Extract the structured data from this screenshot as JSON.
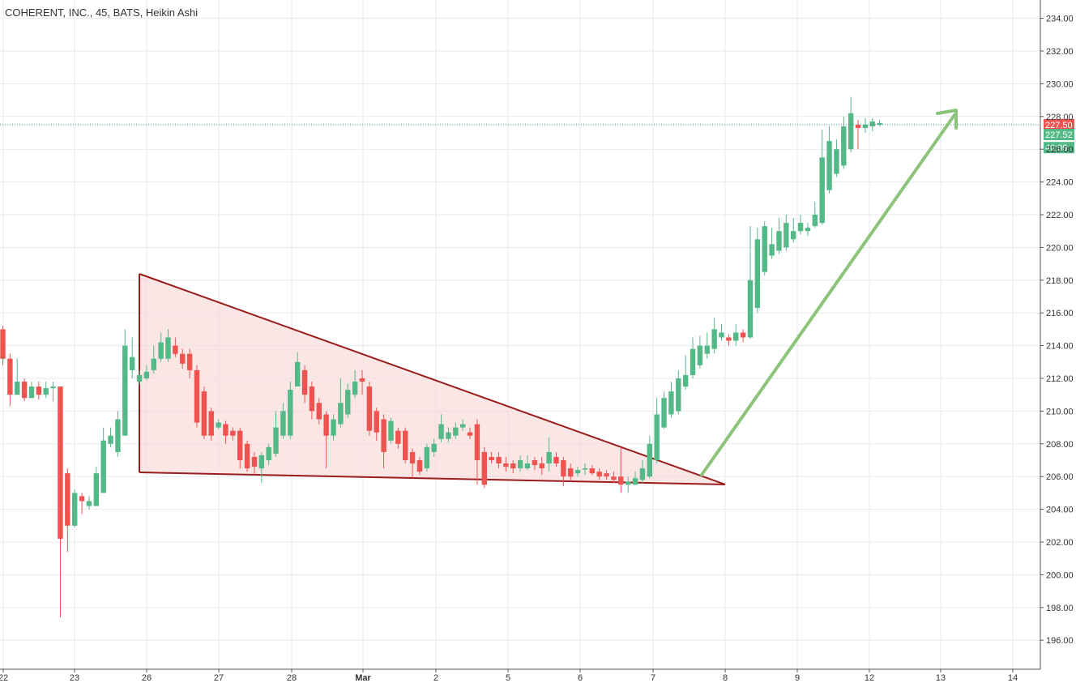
{
  "header": {
    "title": "COHERENT, INC., 45, BATS, Heikin Ashi"
  },
  "chart_data": {
    "type": "candlestick",
    "ylim": [
      194.5,
      235
    ],
    "y_ticks": [
      196,
      198,
      200,
      202,
      204,
      206,
      208,
      210,
      212,
      214,
      216,
      218,
      220,
      222,
      224,
      226,
      228,
      230,
      232,
      234
    ],
    "x_labels": [
      "22",
      "23",
      "26",
      "27",
      "28",
      "Mar",
      "2",
      "5",
      "6",
      "7",
      "8",
      "9",
      "12",
      "13",
      "14"
    ],
    "price_labels": [
      {
        "value": "227.50",
        "price": 227.5,
        "color": "#ef5350"
      },
      {
        "value": "227.52",
        "price": 226.9,
        "color": "#53b987"
      },
      {
        "value": "40:09",
        "price": 226.1,
        "color": "#53b987"
      }
    ],
    "last_price": 227.5,
    "colors": {
      "up": "#53b987",
      "down": "#ef5350",
      "grid": "#e6e9ef",
      "pattern_stroke": "#9b1c1c",
      "pattern_fill": "#f9d6d6",
      "arrow": "#8cc47a"
    },
    "candles": [
      [
        215.0,
        213.2,
        215.2,
        212.8
      ],
      [
        213.2,
        211.0,
        213.5,
        210.3
      ],
      [
        211.0,
        211.8,
        213.2,
        211.0
      ],
      [
        211.8,
        210.8,
        212.0,
        210.6
      ],
      [
        210.8,
        211.5,
        211.8,
        210.9
      ],
      [
        211.5,
        211.0,
        211.8,
        210.7
      ],
      [
        211.0,
        211.4,
        211.8,
        210.8
      ],
      [
        211.4,
        211.5,
        211.8,
        210.6
      ],
      [
        211.5,
        202.2,
        211.5,
        197.4
      ],
      [
        206.2,
        203.0,
        206.5,
        201.4
      ],
      [
        203.0,
        205.0,
        205.2,
        202.9
      ],
      [
        204.8,
        204.5,
        205.0,
        203.7
      ],
      [
        204.2,
        204.5,
        204.8,
        204.0
      ],
      [
        204.2,
        206.2,
        206.6,
        204.2
      ],
      [
        205.0,
        208.2,
        209.0,
        205.0
      ],
      [
        208.0,
        208.5,
        209.0,
        207.8
      ],
      [
        207.5,
        209.5,
        210.0,
        207.2
      ],
      [
        208.5,
        214.0,
        215.0,
        208.5
      ],
      [
        212.5,
        213.3,
        214.5,
        212.0
      ],
      [
        211.8,
        212.2,
        212.5,
        211.6
      ],
      [
        212.0,
        212.4,
        212.8,
        211.9
      ],
      [
        212.5,
        213.2,
        214.0,
        212.3
      ],
      [
        213.2,
        214.2,
        214.8,
        213.0
      ],
      [
        213.2,
        214.5,
        215.0,
        213.0
      ],
      [
        214.0,
        213.5,
        214.5,
        213.3
      ],
      [
        213.5,
        212.9,
        213.8,
        212.6
      ],
      [
        213.5,
        212.5,
        213.8,
        212.0
      ],
      [
        212.5,
        209.3,
        212.8,
        209.0
      ],
      [
        211.2,
        208.5,
        211.5,
        208.3
      ],
      [
        210.0,
        208.5,
        210.2,
        208.2
      ],
      [
        209.0,
        209.3,
        209.5,
        208.9
      ],
      [
        209.2,
        208.5,
        209.4,
        208.0
      ],
      [
        208.8,
        208.5,
        209.0,
        208.2
      ],
      [
        208.8,
        207.0,
        209.0,
        206.5
      ],
      [
        208.0,
        206.5,
        208.2,
        206.3
      ],
      [
        207.2,
        206.6,
        207.5,
        206.1
      ],
      [
        206.5,
        207.3,
        207.5,
        205.6
      ],
      [
        207.0,
        207.8,
        208.0,
        206.7
      ],
      [
        207.4,
        209.0,
        210.0,
        207.2
      ],
      [
        208.5,
        210.0,
        210.5,
        208.3
      ],
      [
        208.5,
        211.3,
        211.8,
        208.3
      ],
      [
        211.5,
        213.0,
        213.6,
        211.5
      ],
      [
        212.5,
        211.0,
        212.8,
        210.5
      ],
      [
        211.5,
        210.0,
        211.8,
        209.5
      ],
      [
        210.5,
        209.5,
        210.8,
        209.2
      ],
      [
        209.8,
        208.5,
        210.0,
        206.5
      ],
      [
        208.5,
        209.5,
        209.8,
        208.2
      ],
      [
        209.2,
        210.5,
        212.0,
        209.0
      ],
      [
        209.8,
        211.3,
        211.7,
        209.6
      ],
      [
        211.0,
        211.8,
        212.5,
        210.8
      ],
      [
        212.0,
        211.8,
        212.5,
        211.0
      ],
      [
        211.5,
        208.8,
        211.8,
        208.5
      ],
      [
        210.0,
        208.7,
        210.2,
        208.2
      ],
      [
        209.5,
        207.5,
        209.8,
        206.5
      ],
      [
        208.2,
        209.4,
        209.6,
        208.0
      ],
      [
        208.8,
        208.0,
        209.0,
        207.7
      ],
      [
        208.8,
        207.0,
        209.0,
        206.8
      ],
      [
        207.5,
        206.8,
        207.7,
        205.9
      ],
      [
        207.0,
        206.3,
        207.2,
        206.1
      ],
      [
        206.5,
        207.8,
        208.0,
        206.3
      ],
      [
        207.5,
        208.0,
        208.3,
        207.2
      ],
      [
        208.3,
        209.2,
        209.8,
        208.1
      ],
      [
        208.3,
        208.7,
        209.0,
        208.1
      ],
      [
        208.5,
        209.0,
        209.3,
        208.3
      ],
      [
        209.0,
        209.2,
        209.5,
        208.8
      ],
      [
        208.7,
        208.5,
        209.0,
        208.3
      ],
      [
        209.2,
        207.0,
        209.5,
        205.5
      ],
      [
        207.5,
        205.5,
        207.8,
        205.3
      ],
      [
        207.2,
        207.0,
        207.5,
        206.8
      ],
      [
        207.2,
        206.8,
        207.5,
        206.5
      ],
      [
        206.8,
        206.6,
        207.2,
        206.3
      ],
      [
        206.8,
        206.5,
        207.0,
        206.2
      ],
      [
        206.5,
        207.0,
        207.3,
        206.3
      ],
      [
        206.5,
        206.8,
        207.3,
        206.4
      ],
      [
        207.0,
        206.7,
        207.2,
        206.4
      ],
      [
        206.8,
        206.5,
        207.2,
        206.1
      ],
      [
        206.8,
        207.5,
        208.4,
        206.3
      ],
      [
        207.2,
        206.8,
        207.5,
        206.6
      ],
      [
        207.0,
        206.0,
        207.2,
        205.4
      ],
      [
        206.5,
        206.0,
        206.8,
        205.7
      ],
      [
        206.2,
        206.4,
        206.6,
        206.0
      ],
      [
        206.5,
        206.5,
        206.8,
        206.1
      ],
      [
        206.5,
        206.2,
        206.7,
        206.1
      ],
      [
        206.3,
        206.0,
        206.5,
        205.8
      ],
      [
        206.2,
        206.0,
        206.4,
        205.8
      ],
      [
        206.0,
        205.8,
        206.3,
        205.6
      ],
      [
        206.0,
        205.5,
        207.8,
        205.0
      ],
      [
        205.5,
        205.7,
        206.0,
        205.0
      ],
      [
        205.5,
        205.9,
        206.3,
        205.5
      ],
      [
        205.8,
        206.5,
        207.0,
        205.6
      ],
      [
        206.0,
        208.0,
        208.5,
        205.9
      ],
      [
        207.0,
        209.8,
        210.8,
        206.8
      ],
      [
        209.0,
        210.8,
        211.2,
        208.9
      ],
      [
        209.8,
        211.2,
        211.8,
        209.6
      ],
      [
        210.0,
        212.0,
        212.5,
        209.8
      ],
      [
        211.5,
        212.2,
        213.4,
        211.3
      ],
      [
        212.2,
        213.8,
        214.5,
        212.0
      ],
      [
        212.8,
        214.0,
        214.6,
        212.6
      ],
      [
        213.5,
        214.0,
        214.8,
        213.2
      ],
      [
        213.8,
        215.0,
        215.7,
        213.5
      ],
      [
        214.5,
        214.8,
        215.3,
        214.3
      ],
      [
        214.5,
        214.3,
        214.7,
        214.0
      ],
      [
        214.3,
        214.8,
        215.3,
        214.0
      ],
      [
        214.8,
        214.5,
        215.0,
        214.2
      ],
      [
        214.5,
        218.0,
        221.3,
        214.4
      ],
      [
        216.3,
        220.5,
        221.2,
        216.0
      ],
      [
        218.5,
        221.3,
        221.6,
        218.3
      ],
      [
        219.5,
        220.2,
        221.2,
        219.3
      ],
      [
        219.8,
        221.0,
        221.8,
        219.6
      ],
      [
        220.0,
        221.5,
        222.0,
        219.8
      ],
      [
        220.5,
        221.0,
        221.8,
        220.3
      ],
      [
        221.0,
        221.5,
        222.0,
        220.8
      ],
      [
        221.0,
        221.2,
        221.5,
        220.7
      ],
      [
        221.3,
        222.0,
        222.8,
        221.2
      ],
      [
        221.5,
        225.5,
        227.2,
        221.4
      ],
      [
        223.5,
        226.5,
        227.4,
        223.3
      ],
      [
        224.5,
        226.0,
        226.6,
        224.3
      ],
      [
        225.0,
        227.4,
        228.0,
        224.8
      ],
      [
        226.0,
        228.2,
        229.2,
        225.8
      ],
      [
        227.5,
        227.3,
        227.8,
        226.0
      ],
      [
        227.3,
        227.5,
        227.9,
        227.0
      ],
      [
        227.4,
        227.7,
        227.9,
        227.1
      ],
      [
        227.5,
        227.6,
        227.8,
        227.4
      ]
    ]
  }
}
